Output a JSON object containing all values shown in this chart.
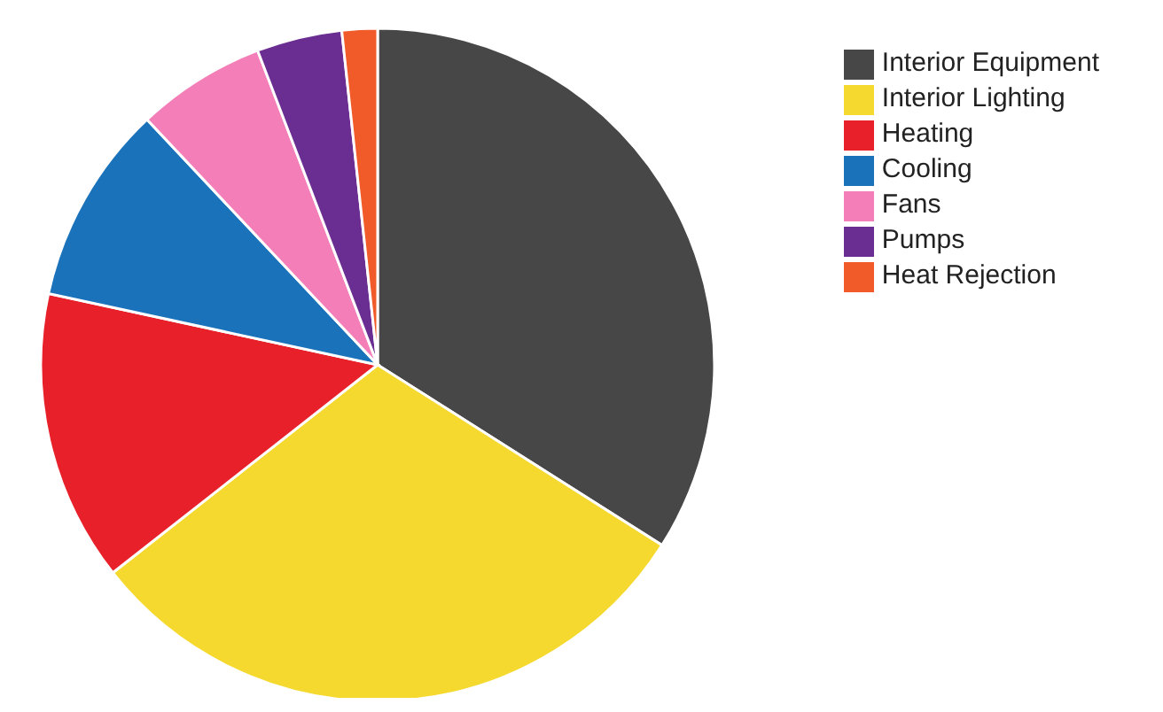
{
  "chart_data": {
    "type": "pie",
    "categories": [
      "Interior Equipment",
      "Interior Lighting",
      "Heating",
      "Cooling",
      "Fans",
      "Pumps",
      "Heat Rejection"
    ],
    "values": [
      34.0,
      30.4,
      14.0,
      9.6,
      6.2,
      4.1,
      1.7
    ],
    "colors": [
      "#474747",
      "#f5d92e",
      "#e8202a",
      "#1a72bb",
      "#f47fb8",
      "#6a2d91",
      "#f15a29"
    ],
    "legend": "top right"
  }
}
